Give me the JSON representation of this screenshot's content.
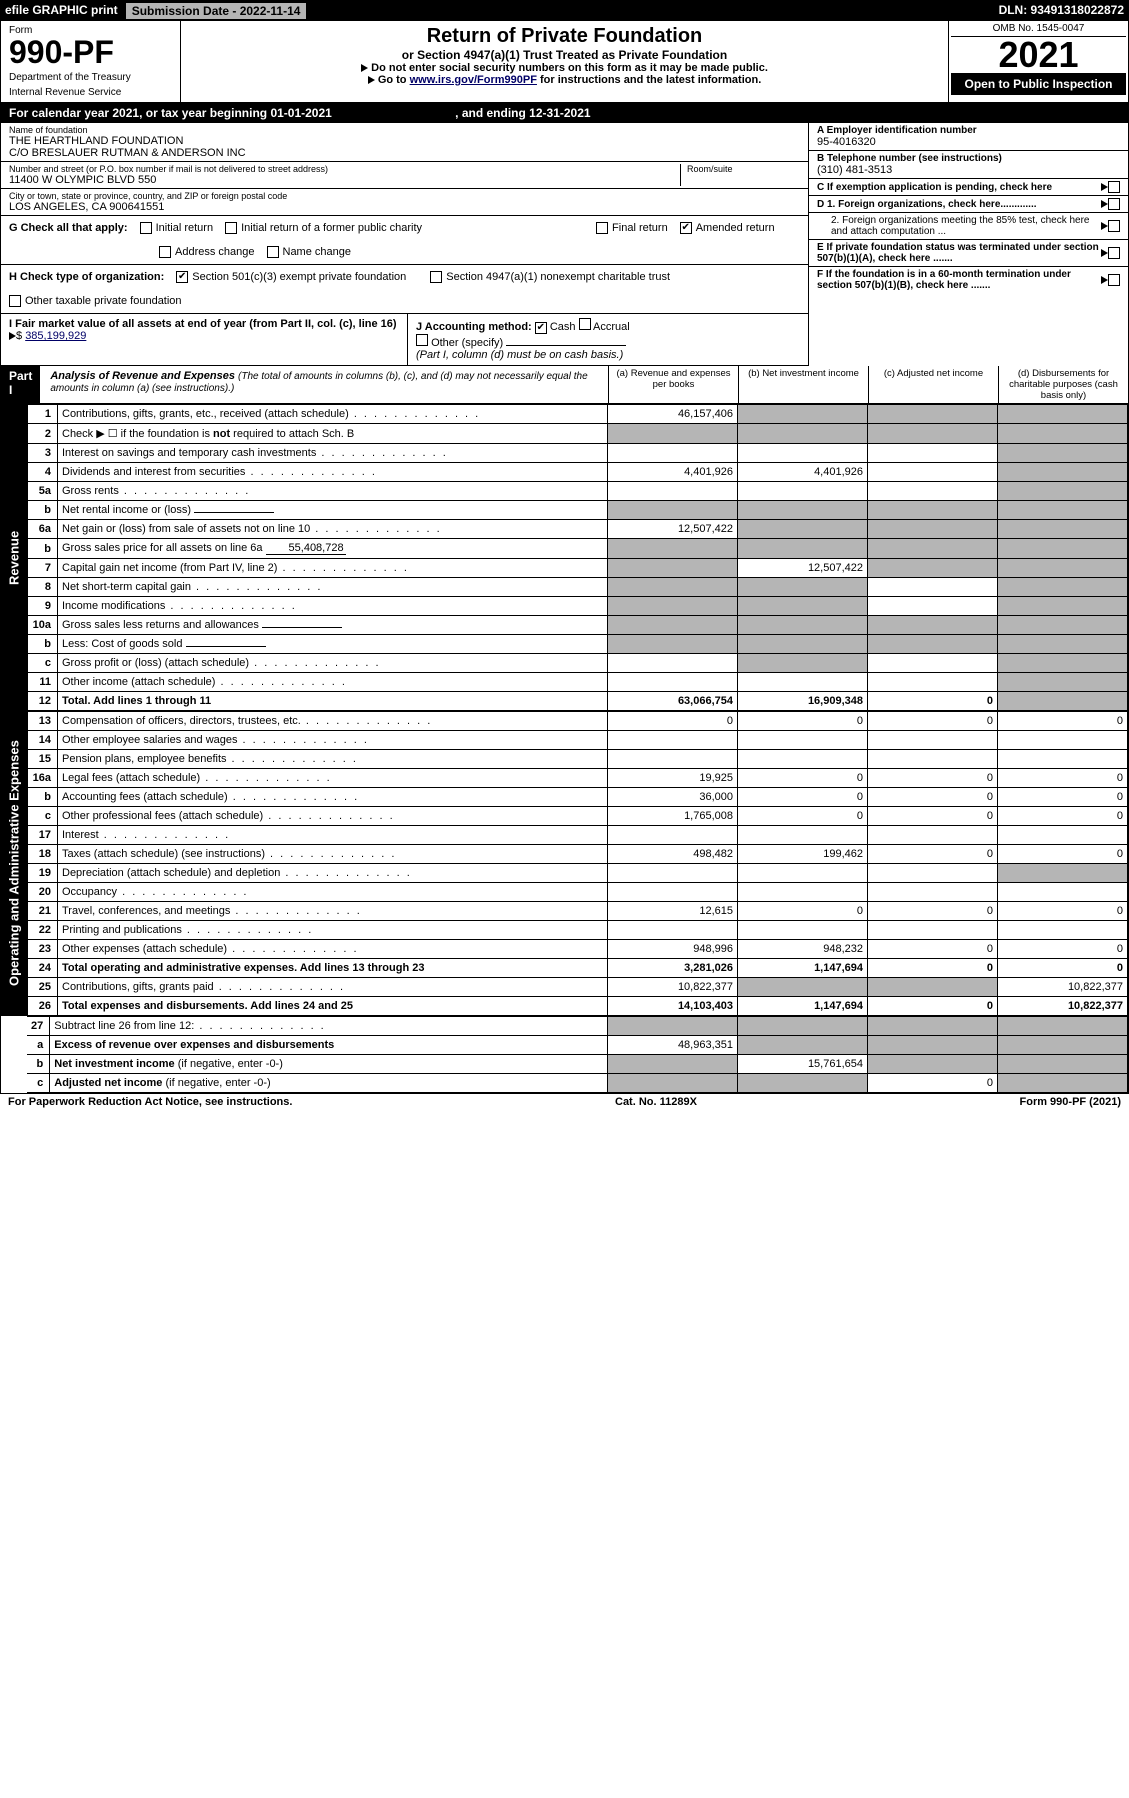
{
  "topbar": {
    "efile": "efile GRAPHIC print",
    "subdate_label": "Submission Date - 2022-11-14",
    "dln": "DLN: 93491318022872"
  },
  "header": {
    "form_label": "Form",
    "form_number": "990-PF",
    "dept": "Department of the Treasury",
    "irs": "Internal Revenue Service",
    "title": "Return of Private Foundation",
    "subtitle": "or Section 4947(a)(1) Trust Treated as Private Foundation",
    "note1": "Do not enter social security numbers on this form as it may be made public.",
    "note2_pre": "Go to ",
    "note2_link": "www.irs.gov/Form990PF",
    "note2_post": " for instructions and the latest information.",
    "omb": "OMB No. 1545-0047",
    "year": "2021",
    "inspect": "Open to Public Inspection"
  },
  "calendar": {
    "text": "For calendar year 2021, or tax year beginning 01-01-2021",
    "ending": ", and ending 12-31-2021"
  },
  "info": {
    "name_label": "Name of foundation",
    "name1": "THE HEARTHLAND FOUNDATION",
    "name2": "C/O BRESLAUER RUTMAN & ANDERSON INC",
    "addr_label": "Number and street (or P.O. box number if mail is not delivered to street address)",
    "addr": "11400 W OLYMPIC BLVD 550",
    "room_label": "Room/suite",
    "city_label": "City or town, state or province, country, and ZIP or foreign postal code",
    "city": "LOS ANGELES, CA  900641551",
    "ein_label": "A Employer identification number",
    "ein": "95-4016320",
    "phone_label": "B Telephone number (see instructions)",
    "phone": "(310) 481-3513",
    "c_label": "C If exemption application is pending, check here",
    "d1_label": "D 1. Foreign organizations, check here.............",
    "d2_label": "2. Foreign organizations meeting the 85% test, check here and attach computation ...",
    "e_label": "E  If private foundation status was terminated under section 507(b)(1)(A), check here .......",
    "f_label": "F  If the foundation is in a 60-month termination under section 507(b)(1)(B), check here ......."
  },
  "g": {
    "label": "G Check all that apply:",
    "initial": "Initial return",
    "initial_former": "Initial return of a former public charity",
    "final": "Final return",
    "amended": "Amended return",
    "addr_change": "Address change",
    "name_change": "Name change"
  },
  "h": {
    "label": "H Check type of organization:",
    "s501": "Section 501(c)(3) exempt private foundation",
    "s4947": "Section 4947(a)(1) nonexempt charitable trust",
    "other": "Other taxable private foundation"
  },
  "i": {
    "label": "I Fair market value of all assets at end of year (from Part II, col. (c), line 16)",
    "value": "385,199,929"
  },
  "j": {
    "label": "J Accounting method:",
    "cash": "Cash",
    "accrual": "Accrual",
    "other": "Other (specify)",
    "note": "(Part I, column (d) must be on cash basis.)"
  },
  "part1": {
    "label": "Part I",
    "title": "Analysis of Revenue and Expenses",
    "hint": "(The total of amounts in columns (b), (c), and (d) may not necessarily equal the amounts in column (a) (see instructions).)",
    "col_a": "(a) Revenue and expenses per books",
    "col_b": "(b) Net investment income",
    "col_c": "(c) Adjusted net income",
    "col_d": "(d) Disbursements for charitable purposes (cash basis only)"
  },
  "sections": {
    "revenue": "Revenue",
    "opex": "Operating and Administrative Expenses"
  },
  "rows": [
    {
      "n": "1",
      "d": "",
      "a": "46,157,406",
      "b": "",
      "c": "",
      "gb": true,
      "gc": true,
      "gd": true
    },
    {
      "n": "2",
      "d": "",
      "a": "",
      "b": "",
      "c": "",
      "ga": true,
      "gb": true,
      "gc": true,
      "gd": true
    },
    {
      "n": "3",
      "d": "",
      "a": "",
      "b": "",
      "c": "",
      "gd": true
    },
    {
      "n": "4",
      "d": "",
      "a": "4,401,926",
      "b": "4,401,926",
      "c": "",
      "gd": true
    },
    {
      "n": "5a",
      "d": "",
      "a": "",
      "b": "",
      "c": "",
      "gd": true
    },
    {
      "n": "b",
      "d": "",
      "a": "",
      "b": "",
      "c": "",
      "ga": true,
      "gb": true,
      "gc": true,
      "gd": true,
      "inline": ""
    },
    {
      "n": "6a",
      "d": "",
      "a": "12,507,422",
      "b": "",
      "c": "",
      "gb": true,
      "gc": true,
      "gd": true
    },
    {
      "n": "b",
      "d": "",
      "a": "",
      "b": "",
      "c": "",
      "ga": true,
      "gb": true,
      "gc": true,
      "gd": true,
      "inline": "55,408,728"
    },
    {
      "n": "7",
      "d": "",
      "a": "",
      "b": "12,507,422",
      "c": "",
      "ga": true,
      "gc": true,
      "gd": true
    },
    {
      "n": "8",
      "d": "",
      "a": "",
      "b": "",
      "c": "",
      "ga": true,
      "gb": true,
      "gd": true
    },
    {
      "n": "9",
      "d": "",
      "a": "",
      "b": "",
      "c": "",
      "ga": true,
      "gb": true,
      "gd": true
    },
    {
      "n": "10a",
      "d": "",
      "a": "",
      "b": "",
      "c": "",
      "ga": true,
      "gb": true,
      "gc": true,
      "gd": true,
      "inline": ""
    },
    {
      "n": "b",
      "d": "",
      "a": "",
      "b": "",
      "c": "",
      "ga": true,
      "gb": true,
      "gc": true,
      "gd": true,
      "inline": ""
    },
    {
      "n": "c",
      "d": "",
      "a": "",
      "b": "",
      "c": "",
      "gb": true,
      "gd": true
    },
    {
      "n": "11",
      "d": "",
      "a": "",
      "b": "",
      "c": "",
      "gd": true
    },
    {
      "n": "12",
      "d": "",
      "a": "63,066,754",
      "b": "16,909,348",
      "c": "0",
      "gd": true,
      "bold": true
    }
  ],
  "rows2": [
    {
      "n": "13",
      "d": "0",
      "a": "0",
      "b": "0",
      "c": "0"
    },
    {
      "n": "14",
      "d": "",
      "a": "",
      "b": "",
      "c": ""
    },
    {
      "n": "15",
      "d": "",
      "a": "",
      "b": "",
      "c": ""
    },
    {
      "n": "16a",
      "d": "0",
      "a": "19,925",
      "b": "0",
      "c": "0"
    },
    {
      "n": "b",
      "d": "0",
      "a": "36,000",
      "b": "0",
      "c": "0"
    },
    {
      "n": "c",
      "d": "0",
      "a": "1,765,008",
      "b": "0",
      "c": "0"
    },
    {
      "n": "17",
      "d": "",
      "a": "",
      "b": "",
      "c": ""
    },
    {
      "n": "18",
      "d": "0",
      "a": "498,482",
      "b": "199,462",
      "c": "0"
    },
    {
      "n": "19",
      "d": "",
      "a": "",
      "b": "",
      "c": "",
      "gd": true
    },
    {
      "n": "20",
      "d": "",
      "a": "",
      "b": "",
      "c": ""
    },
    {
      "n": "21",
      "d": "0",
      "a": "12,615",
      "b": "0",
      "c": "0"
    },
    {
      "n": "22",
      "d": "",
      "a": "",
      "b": "",
      "c": ""
    },
    {
      "n": "23",
      "d": "0",
      "a": "948,996",
      "b": "948,232",
      "c": "0"
    },
    {
      "n": "24",
      "d": "0",
      "a": "3,281,026",
      "b": "1,147,694",
      "c": "0",
      "bold": true
    },
    {
      "n": "25",
      "d": "10,822,377",
      "a": "10,822,377",
      "b": "",
      "c": "",
      "gb": true,
      "gc": true
    },
    {
      "n": "26",
      "d": "10,822,377",
      "a": "14,103,403",
      "b": "1,147,694",
      "c": "0",
      "bold": true
    }
  ],
  "rows3": [
    {
      "n": "27",
      "d": "",
      "a": "",
      "b": "",
      "c": "",
      "ga": true,
      "gb": true,
      "gc": true,
      "gd": true
    },
    {
      "n": "a",
      "d": "",
      "a": "48,963,351",
      "b": "",
      "c": "",
      "gb": true,
      "gc": true,
      "gd": true,
      "bold": true
    },
    {
      "n": "b",
      "d": "",
      "a": "",
      "b": "15,761,654",
      "c": "",
      "ga": true,
      "gc": true,
      "gd": true,
      "bold": true
    },
    {
      "n": "c",
      "d": "",
      "a": "",
      "b": "",
      "c": "0",
      "ga": true,
      "gb": true,
      "gd": true,
      "bold": true
    }
  ],
  "footer": {
    "left": "For Paperwork Reduction Act Notice, see instructions.",
    "mid": "Cat. No. 11289X",
    "right": "Form 990-PF (2021)"
  }
}
